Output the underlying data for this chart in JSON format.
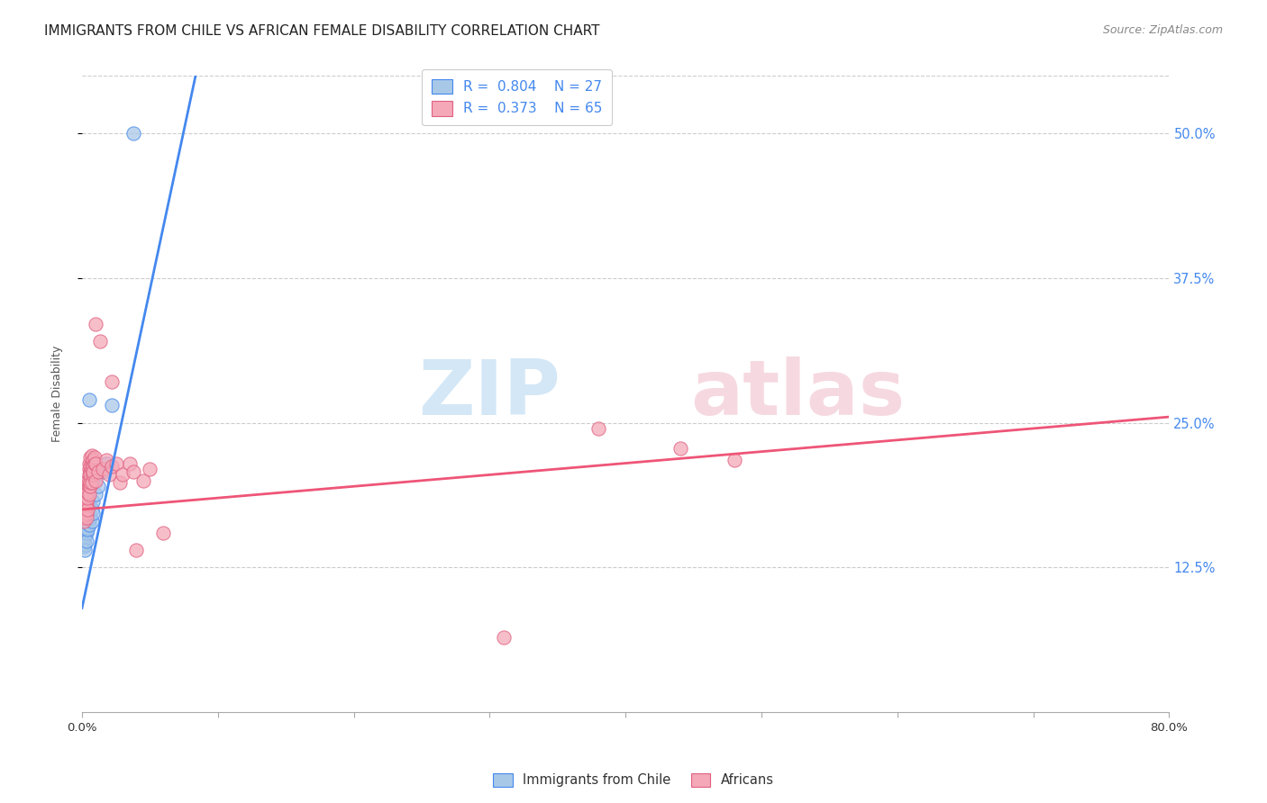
{
  "title": "IMMIGRANTS FROM CHILE VS AFRICAN FEMALE DISABILITY CORRELATION CHART",
  "source": "Source: ZipAtlas.com",
  "ylabel": "Female Disability",
  "yticks": [
    "12.5%",
    "25.0%",
    "37.5%",
    "50.0%"
  ],
  "ytick_vals": [
    0.125,
    0.25,
    0.375,
    0.5
  ],
  "xlim": [
    0.0,
    0.8
  ],
  "ylim": [
    0.0,
    0.55
  ],
  "color_blue": "#a8c8e8",
  "color_pink": "#f4a8b8",
  "line_color_blue": "#4488ee",
  "line_color_pink": "#ee5577",
  "chile_points": [
    [
      0.001,
      0.16
    ],
    [
      0.001,
      0.155
    ],
    [
      0.001,
      0.148
    ],
    [
      0.001,
      0.143
    ],
    [
      0.002,
      0.158
    ],
    [
      0.002,
      0.152
    ],
    [
      0.002,
      0.145
    ],
    [
      0.002,
      0.14
    ],
    [
      0.003,
      0.163
    ],
    [
      0.003,
      0.155
    ],
    [
      0.003,
      0.148
    ],
    [
      0.004,
      0.168
    ],
    [
      0.004,
      0.158
    ],
    [
      0.005,
      0.172
    ],
    [
      0.005,
      0.162
    ],
    [
      0.006,
      0.178
    ],
    [
      0.006,
      0.168
    ],
    [
      0.007,
      0.175
    ],
    [
      0.007,
      0.165
    ],
    [
      0.008,
      0.182
    ],
    [
      0.008,
      0.172
    ],
    [
      0.01,
      0.188
    ],
    [
      0.012,
      0.195
    ],
    [
      0.015,
      0.208
    ],
    [
      0.018,
      0.215
    ],
    [
      0.022,
      0.265
    ],
    [
      0.038,
      0.5
    ],
    [
      0.005,
      0.27
    ]
  ],
  "african_points": [
    [
      0.001,
      0.175
    ],
    [
      0.001,
      0.168
    ],
    [
      0.001,
      0.182
    ],
    [
      0.001,
      0.172
    ],
    [
      0.001,
      0.165
    ],
    [
      0.002,
      0.178
    ],
    [
      0.002,
      0.17
    ],
    [
      0.002,
      0.175
    ],
    [
      0.002,
      0.18
    ],
    [
      0.002,
      0.185
    ],
    [
      0.003,
      0.172
    ],
    [
      0.003,
      0.19
    ],
    [
      0.003,
      0.178
    ],
    [
      0.003,
      0.182
    ],
    [
      0.003,
      0.168
    ],
    [
      0.004,
      0.195
    ],
    [
      0.004,
      0.175
    ],
    [
      0.004,
      0.185
    ],
    [
      0.004,
      0.2
    ],
    [
      0.004,
      0.19
    ],
    [
      0.005,
      0.205
    ],
    [
      0.005,
      0.195
    ],
    [
      0.005,
      0.21
    ],
    [
      0.005,
      0.188
    ],
    [
      0.005,
      0.215
    ],
    [
      0.005,
      0.2
    ],
    [
      0.006,
      0.208
    ],
    [
      0.006,
      0.195
    ],
    [
      0.006,
      0.212
    ],
    [
      0.006,
      0.198
    ],
    [
      0.006,
      0.22
    ],
    [
      0.006,
      0.205
    ],
    [
      0.007,
      0.215
    ],
    [
      0.007,
      0.222
    ],
    [
      0.007,
      0.198
    ],
    [
      0.007,
      0.21
    ],
    [
      0.008,
      0.218
    ],
    [
      0.008,
      0.205
    ],
    [
      0.008,
      0.212
    ],
    [
      0.008,
      0.208
    ],
    [
      0.009,
      0.215
    ],
    [
      0.009,
      0.22
    ],
    [
      0.01,
      0.2
    ],
    [
      0.01,
      0.215
    ],
    [
      0.012,
      0.208
    ],
    [
      0.015,
      0.21
    ],
    [
      0.018,
      0.218
    ],
    [
      0.02,
      0.205
    ],
    [
      0.022,
      0.212
    ],
    [
      0.025,
      0.215
    ],
    [
      0.028,
      0.198
    ],
    [
      0.03,
      0.205
    ],
    [
      0.035,
      0.215
    ],
    [
      0.038,
      0.208
    ],
    [
      0.04,
      0.14
    ],
    [
      0.045,
      0.2
    ],
    [
      0.05,
      0.21
    ],
    [
      0.01,
      0.335
    ],
    [
      0.013,
      0.32
    ],
    [
      0.022,
      0.285
    ],
    [
      0.38,
      0.245
    ],
    [
      0.44,
      0.228
    ],
    [
      0.48,
      0.218
    ],
    [
      0.06,
      0.155
    ],
    [
      0.31,
      0.065
    ]
  ],
  "title_fontsize": 11,
  "source_fontsize": 9,
  "axis_label_fontsize": 9,
  "tick_fontsize": 9.5
}
